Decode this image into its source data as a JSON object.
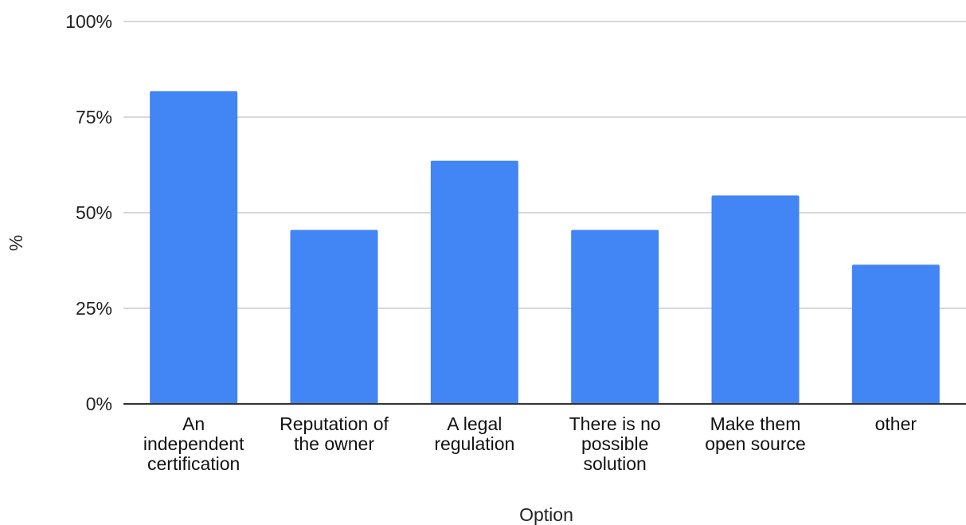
{
  "chart_data": {
    "type": "bar",
    "categories": [
      [
        "An",
        "independent",
        "certification"
      ],
      [
        "Reputation of",
        "the owner"
      ],
      [
        "A legal",
        "regulation"
      ],
      [
        "There is no",
        "possible",
        "solution"
      ],
      [
        "Make them",
        "open source"
      ],
      [
        "other"
      ]
    ],
    "values": [
      81.8,
      45.5,
      63.6,
      45.5,
      54.5,
      36.4
    ],
    "xlabel": "Option",
    "ylabel": "%",
    "ylim": [
      0,
      100
    ],
    "yticks": [
      0,
      25,
      50,
      75,
      100
    ],
    "ytick_labels": [
      "0%",
      "25%",
      "50%",
      "75%",
      "100%"
    ],
    "grid": true,
    "legend": "none",
    "colors": {
      "bar": "#4285f4"
    }
  }
}
